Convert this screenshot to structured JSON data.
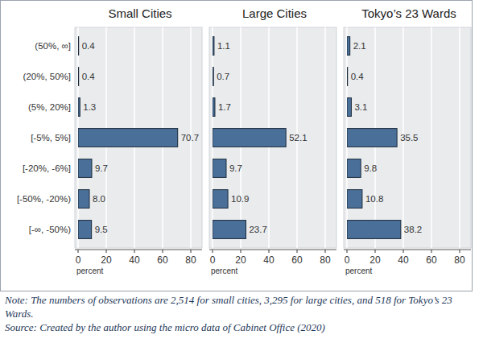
{
  "chart_data": [
    {
      "type": "bar",
      "orientation": "horizontal",
      "title": "Small Cities",
      "xlabel": "percent",
      "categories": [
        "(50%, ∞]",
        "(20%, 50%]",
        "(5%, 20%]",
        "[-5%, 5%]",
        "[-20%, -6%]",
        "[-50%, -20%)",
        "[-∞, -50%)"
      ],
      "values": [
        0.4,
        0.4,
        1.3,
        70.7,
        9.7,
        8.0,
        9.5
      ],
      "value_labels": [
        "0.4",
        "0.4",
        "1.3",
        "70.7",
        "9.7",
        "8.0",
        "9.5"
      ],
      "color": "#4a6f99",
      "xlim": [
        0,
        88
      ],
      "xticks": [
        0,
        20,
        40,
        60,
        80
      ],
      "grid": true,
      "data_labels": true
    },
    {
      "type": "bar",
      "orientation": "horizontal",
      "title": "Large Cities",
      "xlabel": "percent",
      "categories": [
        null,
        null,
        null,
        null,
        null,
        null,
        null
      ],
      "values": [
        1.1,
        0.7,
        1.7,
        52.1,
        9.7,
        10.9,
        23.7
      ],
      "color": "#4a6f99",
      "xlim": [
        0,
        88
      ],
      "xticks": [
        0,
        20,
        40,
        60,
        80
      ],
      "grid": true,
      "data_labels": true
    },
    {
      "type": "bar",
      "orientation": "horizontal",
      "title": "Tokyo’s 23 Wards",
      "xlabel": "percent",
      "categories": [
        null,
        null,
        null,
        null,
        null,
        null,
        null
      ],
      "values": [
        2.1,
        0.4,
        3.1,
        35.5,
        9.8,
        10.8,
        38.2
      ],
      "color": "#4a6f99",
      "xlim": [
        0,
        88
      ],
      "xticks": [
        0,
        20,
        40,
        60,
        80
      ],
      "grid": true,
      "data_labels": true
    }
  ],
  "note": "Note: The numbers of observations are 2,514 for small cities, 3,295 for large cities, and 518 for Tokyo’s 23 Wards.",
  "source": "Source: Created by the author using the micro data of Cabinet Office (2020)"
}
